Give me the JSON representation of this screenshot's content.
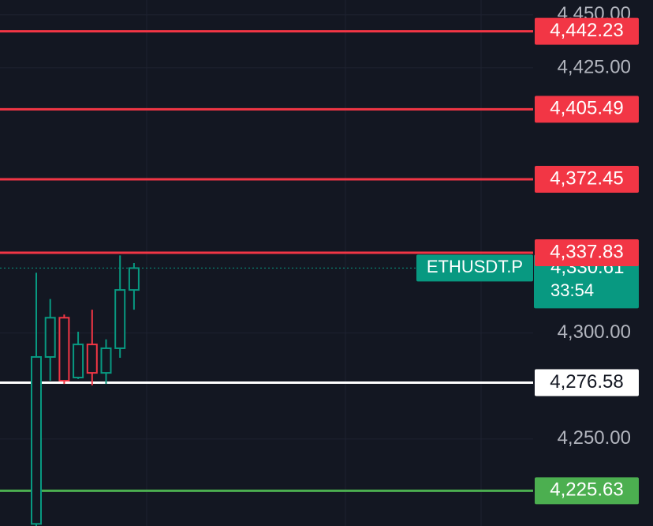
{
  "chart_data": {
    "type": "candlestick",
    "categories": [
      null,
      null,
      null,
      null,
      null,
      null,
      null,
      null
    ],
    "open": [
      4210,
      4288.7,
      4307.2,
      4279,
      4294.6,
      4281.2,
      4292.8,
      4320.3
    ],
    "high": [
      4328.4,
      4316,
      4308.7,
      4300.6,
      4311,
      4297,
      4336.6,
      4333
    ],
    "low": [
      4209,
      4277.5,
      4276,
      4278.3,
      4275.3,
      4276,
      4288.3,
      4311
    ],
    "close": [
      4288.7,
      4307.2,
      4277.5,
      4294.6,
      4281.2,
      4292.8,
      4320.3,
      4330.6
    ],
    "up_color": "#089981",
    "down_color": "#f23645",
    "ylim": [
      4209,
      4457
    ],
    "yticks": [
      {
        "value": 4250,
        "label": "4,250.00"
      },
      {
        "value": 4300,
        "label": "4,300.00"
      },
      {
        "value": 4425,
        "label": "4,425.00"
      },
      {
        "value": 4450,
        "label": "4,450.00"
      }
    ],
    "levels": [
      {
        "value": 4442.23,
        "label": "4,442.23",
        "color": "#f23645"
      },
      {
        "value": 4405.49,
        "label": "4,405.49",
        "color": "#f23645"
      },
      {
        "value": 4372.45,
        "label": "4,372.45",
        "color": "#f23645"
      },
      {
        "value": 4337.83,
        "label": "4,337.83",
        "color": "#f23645"
      },
      {
        "value": 4276.58,
        "label": "4,276.58",
        "color": "#ffffff"
      },
      {
        "value": 4225.63,
        "label": "4,225.63",
        "color": "#4caf50"
      }
    ],
    "current_price": {
      "value": 4330.61,
      "label": "4,330.61",
      "symbol": "ETHUSDT.P",
      "countdown": "33:54",
      "color": "#089981"
    }
  }
}
